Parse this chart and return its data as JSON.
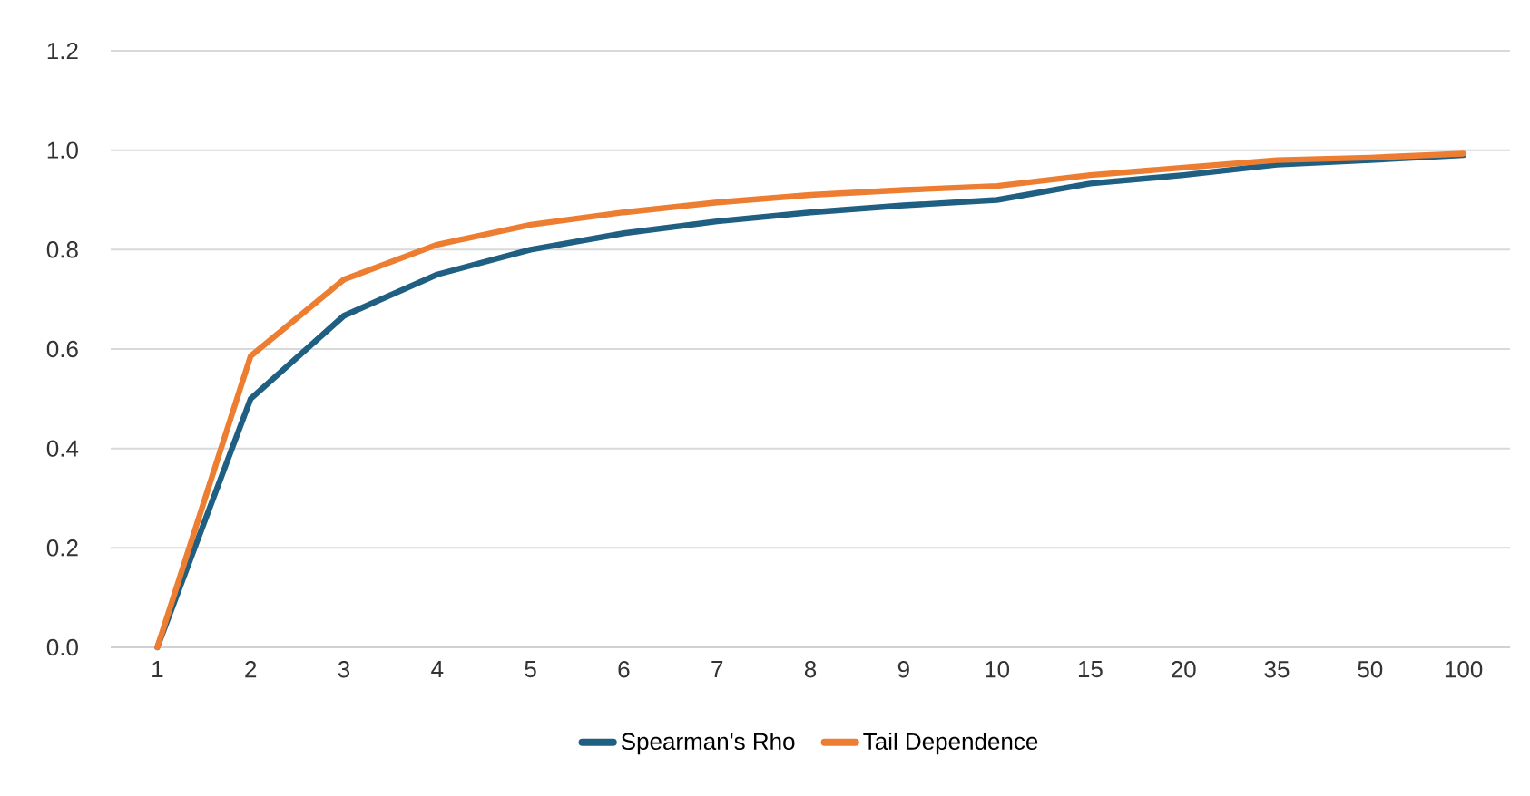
{
  "chart_data": {
    "type": "line",
    "categories": [
      "1",
      "2",
      "3",
      "4",
      "5",
      "6",
      "7",
      "8",
      "9",
      "10",
      "15",
      "20",
      "35",
      "50",
      "100"
    ],
    "series": [
      {
        "name": "Spearman's Rho",
        "color": "#1f5f82",
        "values": [
          0,
          0.5,
          0.667,
          0.75,
          0.8,
          0.833,
          0.857,
          0.875,
          0.889,
          0.9,
          0.933,
          0.95,
          0.971,
          0.98,
          0.99
        ]
      },
      {
        "name": "Tail Dependence",
        "color": "#ed7d31",
        "values": [
          0,
          0.586,
          0.74,
          0.81,
          0.85,
          0.875,
          0.895,
          0.91,
          0.92,
          0.928,
          0.95,
          0.965,
          0.98,
          0.985,
          0.993
        ]
      }
    ],
    "ylim": [
      0,
      1.2
    ],
    "yticks": [
      {
        "value": 0,
        "label": "0.0"
      },
      {
        "value": 0.2,
        "label": "0.2"
      },
      {
        "value": 0.4,
        "label": "0.4"
      },
      {
        "value": 0.6,
        "label": "0.6"
      },
      {
        "value": 0.8,
        "label": "0.8"
      },
      {
        "value": 1.0,
        "label": "1.0"
      },
      {
        "value": 1.2,
        "label": "1.2"
      }
    ],
    "grid": "y",
    "legend": "bottom",
    "marker": "none",
    "line_style": "solid"
  }
}
